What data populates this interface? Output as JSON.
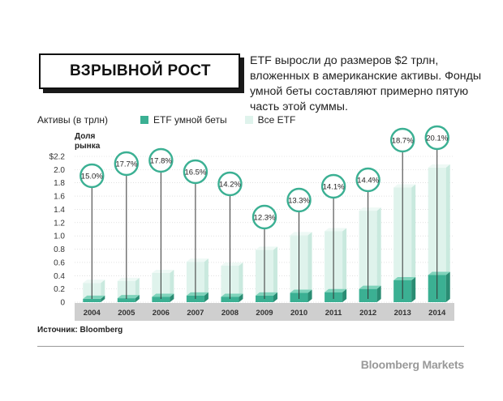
{
  "header": {
    "title": "ВЗРЫВНОЙ РОСТ",
    "intro": "ETF выросли до размеров $2 трлн, вложенных в американские активы. Фонды умной беты составляют примерно пятую часть этой суммы."
  },
  "legend": {
    "axis_title": "Активы (в трлн)",
    "smart_beta": "ETF умной беты",
    "all_etf": "Все ETF"
  },
  "share_label": "Доля рынка",
  "source": "Источник: Bloomberg",
  "brand": "Bloomberg Markets",
  "colors": {
    "smart_front": "#3bb093",
    "smart_side": "#2a8c73",
    "smart_top": "#7fd3bb",
    "all_front": "#dff3ec",
    "all_side": "#c9e9de",
    "all_top": "#eef9f5",
    "circle_stroke": "#3bb093",
    "grid": "#cfcfcf",
    "axis_band": "#cfcfcf"
  },
  "chart_data": {
    "type": "bar",
    "title": "ВЗРЫВНОЙ РОСТ",
    "ylabel": "Активы (в трлн)",
    "ylim": [
      0,
      2.2
    ],
    "yticks": [
      0,
      0.2,
      0.4,
      0.6,
      0.8,
      1.0,
      1.2,
      1.4,
      1.6,
      1.8,
      2.0,
      2.2
    ],
    "ytick_labels": [
      "0",
      "0.2",
      "0.4",
      "0.6",
      "0.8",
      "1.0",
      "1.2",
      "1.4",
      "1.6",
      "1.8",
      "2.0",
      "$2.2"
    ],
    "categories": [
      "2004",
      "2005",
      "2006",
      "2007",
      "2008",
      "2009",
      "2010",
      "2011",
      "2012",
      "2013",
      "2014"
    ],
    "series": [
      {
        "name": "ETF умной беты",
        "values": [
          0.05,
          0.06,
          0.08,
          0.1,
          0.08,
          0.1,
          0.14,
          0.15,
          0.2,
          0.33,
          0.41
        ]
      },
      {
        "name": "Все ETF",
        "values": [
          0.29,
          0.32,
          0.44,
          0.61,
          0.55,
          0.79,
          1.01,
          1.07,
          1.38,
          1.73,
          2.03
        ]
      }
    ],
    "share_labels": [
      "15.0%",
      "17.7%",
      "17.8%",
      "16.5%",
      "14.2%",
      "12.3%",
      "13.3%",
      "14.1%",
      "14.4%",
      "18.7%",
      "20.1%"
    ],
    "share_values": [
      15.0,
      17.7,
      17.8,
      16.5,
      14.2,
      12.3,
      13.3,
      14.1,
      14.4,
      18.7,
      20.1
    ]
  }
}
